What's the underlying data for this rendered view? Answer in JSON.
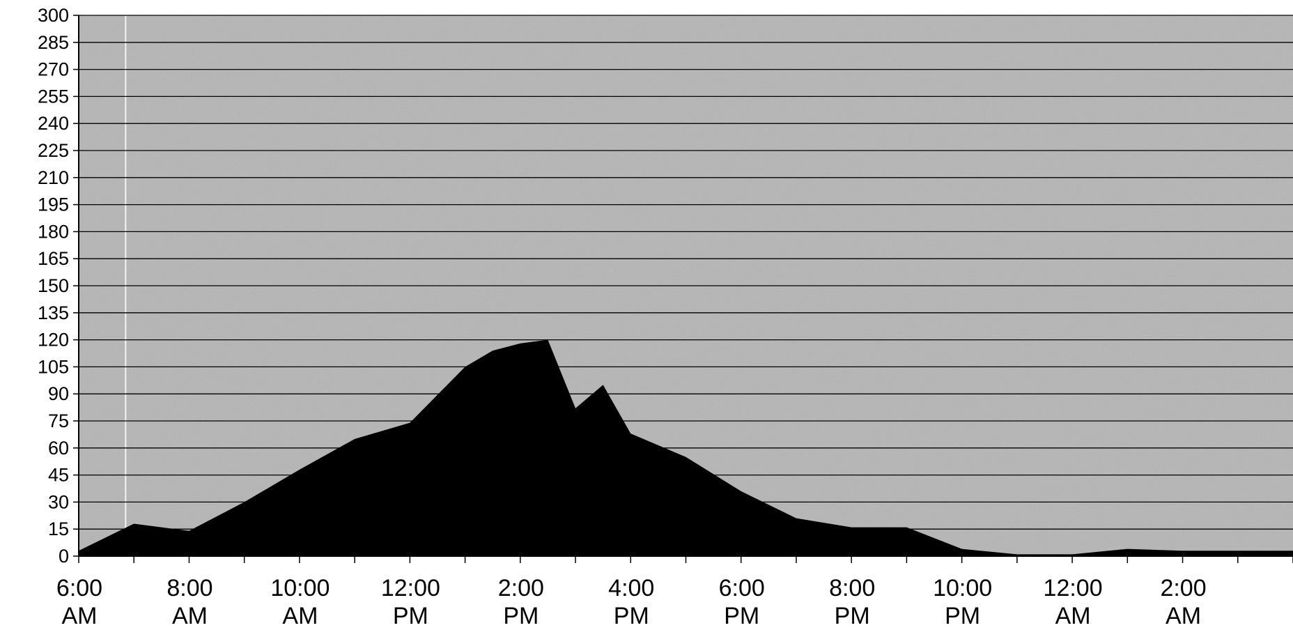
{
  "chart_data": {
    "type": "area",
    "title": "",
    "xlabel": "",
    "ylabel": "",
    "ylim": [
      0,
      300
    ],
    "y_ticks": [
      0,
      15,
      30,
      45,
      60,
      75,
      90,
      105,
      120,
      135,
      150,
      165,
      180,
      195,
      210,
      225,
      240,
      255,
      270,
      285,
      300
    ],
    "x_tick_labels": [
      [
        "6:00",
        "AM"
      ],
      [
        "8:00",
        "AM"
      ],
      [
        "10:00",
        "AM"
      ],
      [
        "12:00",
        "PM"
      ],
      [
        "2:00",
        "PM"
      ],
      [
        "4:00",
        "PM"
      ],
      [
        "6:00",
        "PM"
      ],
      [
        "8:00",
        "PM"
      ],
      [
        "10:00",
        "PM"
      ],
      [
        "12:00",
        "AM"
      ],
      [
        "2:00",
        "AM"
      ]
    ],
    "x_hours_since_6am_range": [
      0,
      22
    ],
    "grid": true,
    "legend": "none",
    "series": [
      {
        "x_hours_since_6am": [
          0,
          1,
          2,
          3,
          4,
          5,
          6,
          7,
          7.5,
          8,
          8.5,
          9,
          9.5,
          10,
          11,
          12,
          13,
          14,
          15,
          16,
          17,
          18,
          19,
          20,
          21,
          21.5,
          22
        ],
        "values": [
          3,
          18,
          14,
          30,
          48,
          65,
          74,
          105,
          114,
          118,
          120,
          82,
          95,
          68,
          55,
          36,
          21,
          16,
          16,
          4,
          1,
          1,
          4,
          3,
          3,
          3,
          3
        ],
        "color": "#000000"
      }
    ],
    "colors": {
      "plot_background": "#b5b5b5",
      "gridline": "#000000",
      "area_fill": "#000000"
    }
  }
}
